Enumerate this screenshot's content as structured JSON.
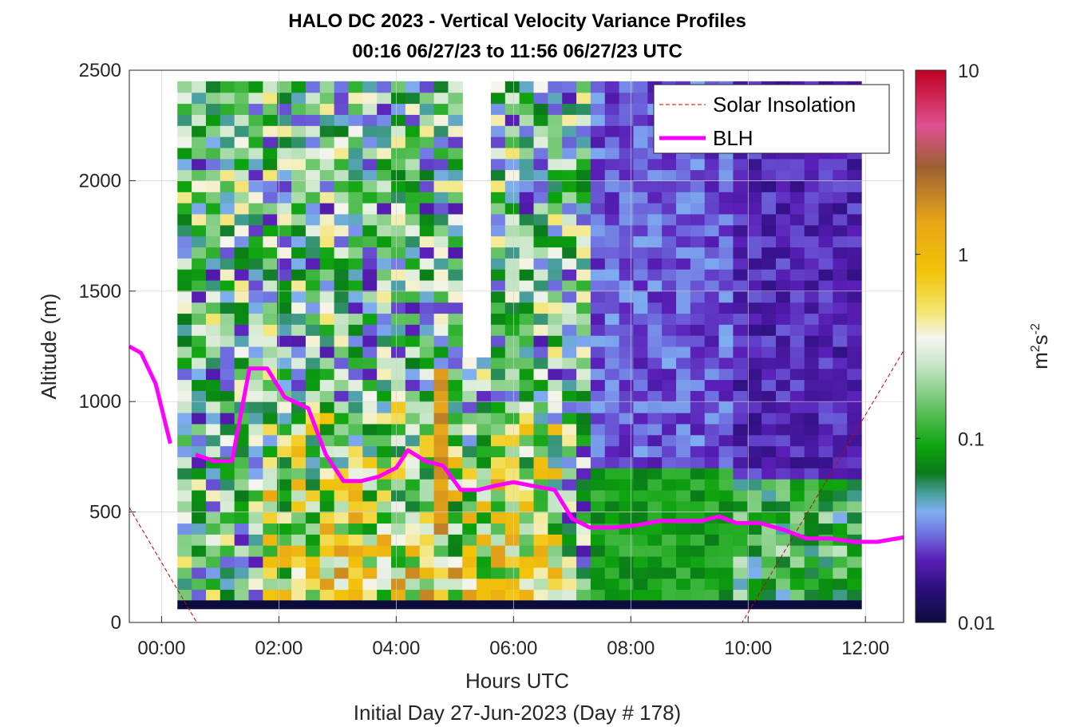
{
  "chart_data": {
    "type": "heatmap",
    "title_line1": "HALO DC 2023 - Vertical Velocity Variance Profiles",
    "title_line2": "00:16 06/27/23 to 11:56 06/27/23  UTC",
    "xlabel": "Hours UTC",
    "xlabel_sub": "Initial Day 27-Jun-2023 (Day # 178)",
    "ylabel": "Altitude (m)",
    "xlim_hours": [
      -0.55,
      12.65
    ],
    "ylim": [
      0,
      2500
    ],
    "x_ticks": [
      {
        "value": 0,
        "label": "00:00"
      },
      {
        "value": 2,
        "label": "02:00"
      },
      {
        "value": 4,
        "label": "04:00"
      },
      {
        "value": 6,
        "label": "06:00"
      },
      {
        "value": 8,
        "label": "08:00"
      },
      {
        "value": 10,
        "label": "10:00"
      },
      {
        "value": 12,
        "label": "12:00"
      }
    ],
    "y_ticks": [
      0,
      500,
      1000,
      1500,
      2000,
      2500
    ],
    "grid": true,
    "colorbar": {
      "scale": "log",
      "range": [
        0.01,
        10
      ],
      "ticks": [
        {
          "value": 0.01,
          "label": "0.01"
        },
        {
          "value": 0.1,
          "label": "0.1"
        },
        {
          "value": 1,
          "label": "1"
        },
        {
          "value": 10,
          "label": "10"
        }
      ],
      "unit_base": "m",
      "unit_exp1": "2",
      "unit_mid": "s",
      "unit_exp2": "-2",
      "stops": [
        {
          "value": 0.01,
          "color": "#0c0c3c"
        },
        {
          "value": 0.015,
          "color": "#2a0e7a"
        },
        {
          "value": 0.022,
          "color": "#5a1fb8"
        },
        {
          "value": 0.03,
          "color": "#6f6fe0"
        },
        {
          "value": 0.04,
          "color": "#7fb0f0"
        },
        {
          "value": 0.05,
          "color": "#4aa0a0"
        },
        {
          "value": 0.065,
          "color": "#0a7a1a"
        },
        {
          "value": 0.09,
          "color": "#0ca30c"
        },
        {
          "value": 0.15,
          "color": "#66c466"
        },
        {
          "value": 0.25,
          "color": "#c8e6c8"
        },
        {
          "value": 0.35,
          "color": "#f5f5ee"
        },
        {
          "value": 0.5,
          "color": "#f3e46a"
        },
        {
          "value": 0.8,
          "color": "#f2c40a"
        },
        {
          "value": 1.5,
          "color": "#e8a518"
        },
        {
          "value": 3,
          "color": "#9c6032"
        },
        {
          "value": 5,
          "color": "#e05090"
        },
        {
          "value": 10,
          "color": "#c00020"
        }
      ]
    },
    "heatmap_extent": {
      "x_start_hours": 0.27,
      "x_end_hours": 11.93,
      "columns": 48,
      "y_start_m": 100,
      "y_end_m": 2450,
      "row_height_m": 50,
      "missing_columns": [
        20,
        21
      ],
      "gap_segments_m": [
        [
          1150,
          2450
        ]
      ],
      "gap_column": 18
    },
    "legend": {
      "placement": "top-right",
      "entries": [
        {
          "label": "Solar Insolation",
          "color": "#cc0000",
          "style": "dashed"
        },
        {
          "label": "BLH",
          "color": "#ff00ff",
          "style": "solid"
        }
      ]
    },
    "series": [
      {
        "name": "BLH",
        "color": "#ff00ff",
        "segments": [
          [
            [
              -0.55,
              1250
            ],
            [
              -0.35,
              1220
            ],
            [
              -0.1,
              1080
            ],
            [
              0.15,
              810
            ]
          ],
          [
            [
              0.58,
              760
            ],
            [
              0.9,
              730
            ],
            [
              1.2,
              730
            ],
            [
              1.5,
              1150
            ],
            [
              1.8,
              1150
            ],
            [
              2.1,
              1020
            ],
            [
              2.5,
              970
            ],
            [
              2.8,
              760
            ],
            [
              3.1,
              640
            ],
            [
              3.4,
              640
            ],
            [
              3.7,
              660
            ],
            [
              4.0,
              700
            ],
            [
              4.2,
              780
            ],
            [
              4.5,
              730
            ],
            [
              4.8,
              710
            ],
            [
              5.1,
              600
            ],
            [
              5.4,
              600
            ],
            [
              5.7,
              620
            ],
            [
              6.0,
              635
            ],
            [
              6.3,
              620
            ],
            [
              6.7,
              600
            ],
            [
              7.0,
              470
            ],
            [
              7.3,
              430
            ],
            [
              7.7,
              430
            ],
            [
              8.1,
              440
            ],
            [
              8.5,
              460
            ],
            [
              8.9,
              460
            ],
            [
              9.2,
              460
            ],
            [
              9.5,
              480
            ],
            [
              9.8,
              450
            ],
            [
              10.2,
              450
            ],
            [
              10.6,
              420
            ],
            [
              11.0,
              380
            ],
            [
              11.4,
              380
            ],
            [
              11.8,
              365
            ],
            [
              12.2,
              365
            ],
            [
              12.65,
              385
            ]
          ]
        ]
      },
      {
        "name": "Solar Insolation",
        "color": "#cc0000",
        "x": [
          -0.55,
          0.6,
          9.9,
          12.65
        ],
        "y": [
          520,
          0,
          0,
          1230
        ]
      }
    ]
  }
}
